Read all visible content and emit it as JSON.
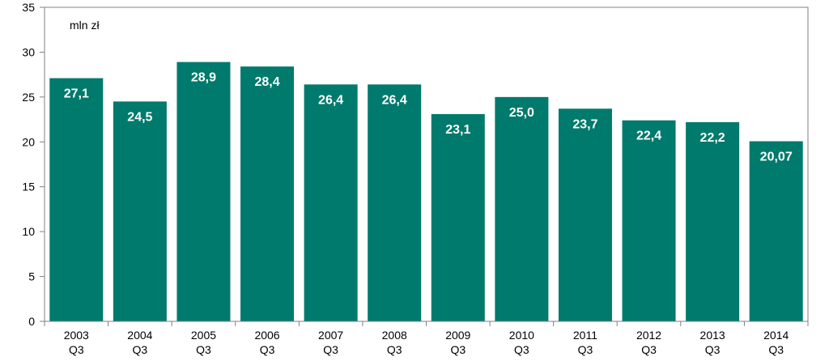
{
  "chart_data": {
    "type": "bar",
    "title": "",
    "xlabel": "",
    "ylabel": "",
    "unit_label": "mln zł",
    "categories": [
      [
        "2003",
        "Q3"
      ],
      [
        "2004",
        "Q3"
      ],
      [
        "2005",
        "Q3"
      ],
      [
        "2006",
        "Q3"
      ],
      [
        "2007",
        "Q3"
      ],
      [
        "2008",
        "Q3"
      ],
      [
        "2009",
        "Q3"
      ],
      [
        "2010",
        "Q3"
      ],
      [
        "2011",
        "Q3"
      ],
      [
        "2012",
        "Q3"
      ],
      [
        "2013",
        "Q3"
      ],
      [
        "2014",
        "Q3"
      ]
    ],
    "values": [
      27.1,
      24.5,
      28.9,
      28.4,
      26.4,
      26.4,
      23.1,
      25.0,
      23.7,
      22.4,
      22.2,
      20.07
    ],
    "value_labels": [
      "27,1",
      "24,5",
      "28,9",
      "28,4",
      "26,4",
      "26,4",
      "23,1",
      "25,0",
      "23,7",
      "22,4",
      "22,2",
      "20,07"
    ],
    "ylim": [
      0,
      35
    ],
    "yticks": [
      "0",
      "5",
      "10",
      "15",
      "20",
      "25",
      "30",
      "35"
    ],
    "grid": false,
    "legend": "none",
    "colors": {
      "bar": "#007a6c",
      "axis": "#808080",
      "bar_label": "#ffffff"
    }
  }
}
